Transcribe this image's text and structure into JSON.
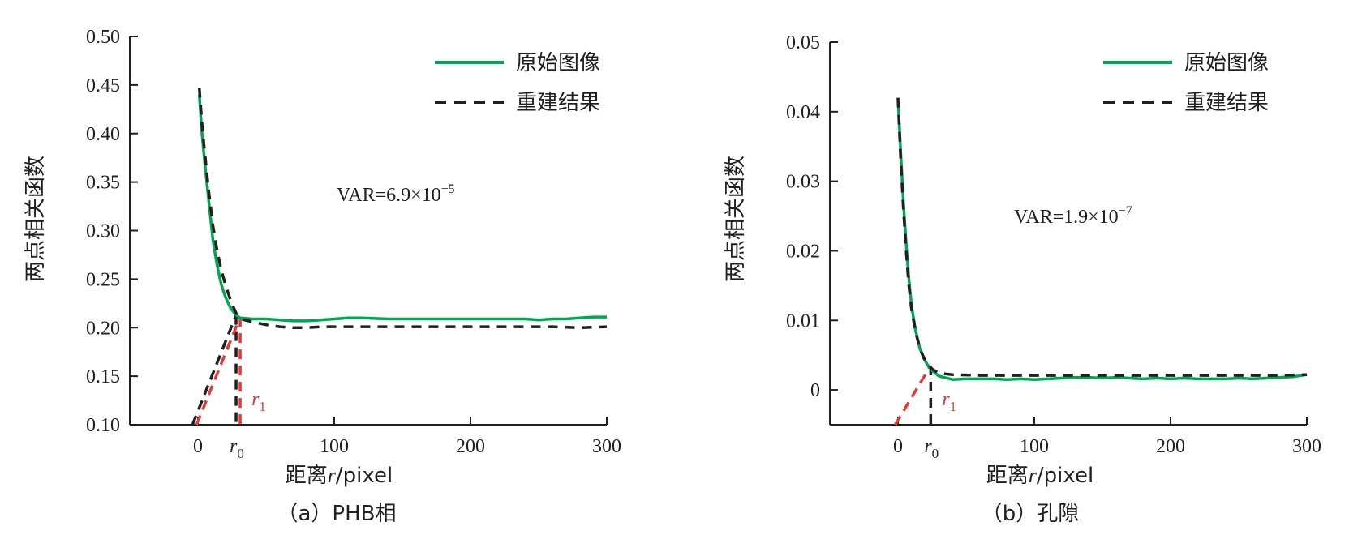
{
  "chart_data": [
    {
      "type": "line",
      "caption": "（a）PHB相",
      "xlabel_prefix": "距离",
      "xlabel_var": "r",
      "xlabel_suffix": "/pixel",
      "ylabel": "两点相关函数",
      "xlim": [
        -50,
        300
      ],
      "ylim": [
        0.1,
        0.5
      ],
      "x_ticks": [
        0,
        100,
        200,
        300
      ],
      "x_tick_labels": [
        "0",
        "100",
        "200",
        "300"
      ],
      "y_ticks": [
        0.1,
        0.15,
        0.2,
        0.25,
        0.3,
        0.35,
        0.4,
        0.45,
        0.5
      ],
      "y_tick_labels": [
        "0.10",
        "0.15",
        "0.20",
        "0.25",
        "0.30",
        "0.35",
        "0.40",
        "0.45",
        "0.50"
      ],
      "annotation_base": "VAR=6.9×10",
      "annotation_exp": "−5",
      "r0_label": "r",
      "r0_sub": "0",
      "r1_label": "r",
      "r1_sub": "1",
      "r0_x": 28,
      "r1_x": 31,
      "series": [
        {
          "name": "原始图像",
          "style": "solid",
          "color": "#00a651",
          "x": [
            1,
            3,
            5,
            8,
            11,
            14,
            17,
            20,
            24,
            28,
            31,
            40,
            50,
            60,
            70,
            80,
            90,
            100,
            110,
            120,
            140,
            160,
            180,
            200,
            220,
            240,
            250,
            260,
            270,
            280,
            290,
            300
          ],
          "y": [
            0.44,
            0.4,
            0.37,
            0.33,
            0.29,
            0.265,
            0.245,
            0.232,
            0.22,
            0.213,
            0.21,
            0.209,
            0.209,
            0.208,
            0.207,
            0.207,
            0.208,
            0.209,
            0.21,
            0.21,
            0.209,
            0.209,
            0.209,
            0.209,
            0.209,
            0.209,
            0.208,
            0.209,
            0.209,
            0.21,
            0.211,
            0.211
          ]
        },
        {
          "name": "重建结果",
          "style": "dashed",
          "color": "#231f20",
          "x": [
            1,
            3,
            5,
            8,
            11,
            14,
            17,
            20,
            24,
            28,
            31,
            40,
            50,
            60,
            70,
            80,
            90,
            100,
            120,
            140,
            160,
            180,
            200,
            220,
            240,
            260,
            280,
            300
          ],
          "y": [
            0.447,
            0.41,
            0.38,
            0.34,
            0.305,
            0.28,
            0.26,
            0.245,
            0.228,
            0.215,
            0.209,
            0.206,
            0.203,
            0.201,
            0.2,
            0.2,
            0.201,
            0.201,
            0.201,
            0.201,
            0.201,
            0.201,
            0.201,
            0.201,
            0.201,
            0.201,
            0.2,
            0.201
          ]
        }
      ],
      "tangent_dark": [
        [
          -4,
          0.1
        ],
        [
          28,
          0.213
        ]
      ],
      "tangent_red": [
        [
          -1,
          0.1
        ],
        [
          31,
          0.211
        ]
      ],
      "drop_dark": [
        [
          28,
          0.213
        ],
        [
          28,
          0.1
        ]
      ],
      "drop_red": [
        [
          31,
          0.211
        ],
        [
          31,
          0.1
        ]
      ]
    },
    {
      "type": "line",
      "caption": "（b）孔隙",
      "xlabel_prefix": "距离",
      "xlabel_var": "r",
      "xlabel_suffix": "/pixel",
      "ylabel": "两点相关函数",
      "xlim": [
        -50,
        300
      ],
      "ylim": [
        -0.005,
        0.05
      ],
      "x_ticks": [
        0,
        100,
        200,
        300
      ],
      "x_tick_labels": [
        "0",
        "100",
        "200",
        "300"
      ],
      "y_ticks": [
        0,
        0.01,
        0.02,
        0.03,
        0.04,
        0.05
      ],
      "y_tick_labels": [
        "0",
        "0.01",
        "0.02",
        "0.03",
        "0.04",
        "0.05"
      ],
      "annotation_base": "VAR=1.9×10",
      "annotation_exp": "−7",
      "r0_label": "r",
      "r0_sub": "0",
      "r1_label": "r",
      "r1_sub": "1",
      "r0_x": 24,
      "r1_x": 24,
      "series": [
        {
          "name": "原始图像",
          "style": "solid",
          "color": "#00a651",
          "x": [
            0,
            2,
            4,
            6,
            8,
            10,
            13,
            16,
            19,
            22,
            25,
            30,
            40,
            50,
            60,
            70,
            80,
            90,
            100,
            110,
            120,
            130,
            140,
            150,
            160,
            170,
            180,
            190,
            200,
            210,
            220,
            230,
            240,
            250,
            260,
            270,
            280,
            290,
            300
          ],
          "y": [
            0.042,
            0.034,
            0.027,
            0.021,
            0.016,
            0.012,
            0.0085,
            0.006,
            0.0045,
            0.0035,
            0.0028,
            0.002,
            0.0015,
            0.0016,
            0.0016,
            0.0016,
            0.0015,
            0.0016,
            0.0015,
            0.0016,
            0.0017,
            0.0018,
            0.0018,
            0.0017,
            0.0018,
            0.0017,
            0.0016,
            0.0017,
            0.0016,
            0.0017,
            0.0016,
            0.0016,
            0.0016,
            0.0017,
            0.0016,
            0.0017,
            0.0018,
            0.0019,
            0.0022
          ]
        },
        {
          "name": "重建结果",
          "style": "dashed",
          "color": "#231f20",
          "x": [
            0,
            2,
            4,
            6,
            8,
            10,
            13,
            16,
            19,
            22,
            25,
            30,
            40,
            60,
            80,
            100,
            120,
            140,
            160,
            180,
            200,
            220,
            240,
            260,
            280,
            300
          ],
          "y": [
            0.042,
            0.033,
            0.026,
            0.02,
            0.015,
            0.0115,
            0.0083,
            0.006,
            0.0046,
            0.0037,
            0.003,
            0.0024,
            0.0022,
            0.0021,
            0.0021,
            0.0021,
            0.0021,
            0.0021,
            0.0021,
            0.0021,
            0.0021,
            0.0021,
            0.0021,
            0.0021,
            0.0021,
            0.0022
          ]
        }
      ],
      "tangent_dark": [],
      "tangent_red": [
        [
          -2,
          -0.005
        ],
        [
          24,
          0.0035
        ]
      ],
      "drop_dark": [
        [
          24,
          0.0035
        ],
        [
          24,
          -0.005
        ]
      ],
      "drop_red": []
    }
  ]
}
